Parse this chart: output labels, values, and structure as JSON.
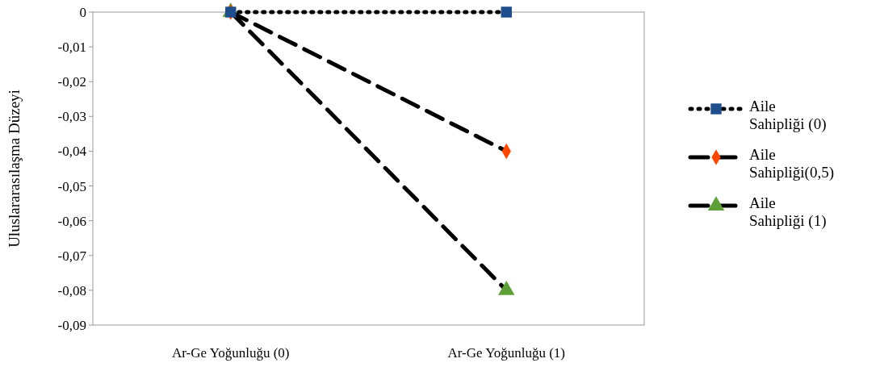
{
  "chart_data": {
    "type": "line",
    "ylabel": "Uluslararasılaşma Düzeyi",
    "categories": [
      "Ar-Ge Yoğunluğu (0)",
      "Ar-Ge Yoğunluğu (1)"
    ],
    "series": [
      {
        "name": "Aile Sahipliği (0)",
        "color": "#1f4e8c",
        "values": [
          0,
          0
        ],
        "marker": "square",
        "line_style": "dotted"
      },
      {
        "name": "Aile Sahipliği(0,5)",
        "color": "#ff4500",
        "values": [
          0,
          -0.04
        ],
        "marker": "diamond",
        "line_style": "dashed"
      },
      {
        "name": "Aile Sahipliği (1)",
        "color": "#5fa036",
        "values": [
          0,
          -0.08
        ],
        "marker": "triangle",
        "line_style": "dashed"
      }
    ],
    "ylim": [
      -0.09,
      0
    ],
    "yticks": [
      {
        "value": 0,
        "label": "0"
      },
      {
        "value": -0.01,
        "label": "-0,01"
      },
      {
        "value": -0.02,
        "label": "-0,02"
      },
      {
        "value": -0.03,
        "label": "-0,03"
      },
      {
        "value": -0.04,
        "label": "-0,04"
      },
      {
        "value": -0.05,
        "label": "-0,05"
      },
      {
        "value": -0.06,
        "label": "-0,06"
      },
      {
        "value": -0.07,
        "label": "-0,07"
      },
      {
        "value": -0.08,
        "label": "-0,08"
      },
      {
        "value": -0.09,
        "label": "-0,09"
      }
    ],
    "grid": false,
    "legend": "right"
  }
}
